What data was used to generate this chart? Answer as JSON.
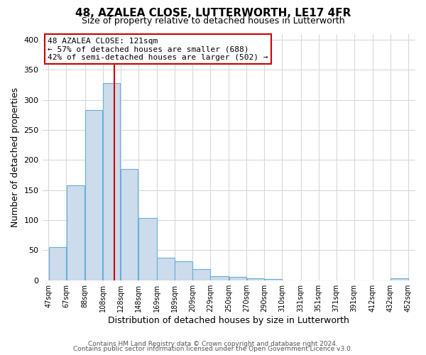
{
  "title1": "48, AZALEA CLOSE, LUTTERWORTH, LE17 4FR",
  "title2": "Size of property relative to detached houses in Lutterworth",
  "xlabel": "Distribution of detached houses by size in Lutterworth",
  "ylabel": "Number of detached properties",
  "footer1": "Contains HM Land Registry data © Crown copyright and database right 2024.",
  "footer2": "Contains public sector information licensed under the Open Government Licence v3.0.",
  "bar_left_edges": [
    47,
    67,
    88,
    108,
    128,
    148,
    169,
    189,
    209,
    229,
    250,
    270,
    290,
    310,
    331,
    351,
    371,
    391,
    412,
    432
  ],
  "bar_heights": [
    55,
    158,
    283,
    328,
    185,
    103,
    37,
    32,
    18,
    7,
    5,
    3,
    2,
    0,
    0,
    0,
    0,
    0,
    0,
    3
  ],
  "bar_widths": [
    20,
    21,
    20,
    20,
    20,
    21,
    20,
    20,
    20,
    21,
    20,
    20,
    20,
    21,
    20,
    20,
    20,
    21,
    20,
    20
  ],
  "bar_color": "#ccdcec",
  "bar_edge_color": "#6baed6",
  "vline_x": 121,
  "vline_color": "#cc0000",
  "annotation_title": "48 AZALEA CLOSE: 121sqm",
  "annotation_line1": "← 57% of detached houses are smaller (688)",
  "annotation_line2": "42% of semi-detached houses are larger (502) →",
  "annotation_box_color": "#ffffff",
  "annotation_box_edge": "#cc0000",
  "ylim": [
    0,
    410
  ],
  "xlim": [
    40,
    460
  ],
  "yticks": [
    0,
    50,
    100,
    150,
    200,
    250,
    300,
    350,
    400
  ],
  "xtick_labels": [
    "47sqm",
    "67sqm",
    "88sqm",
    "108sqm",
    "128sqm",
    "148sqm",
    "169sqm",
    "189sqm",
    "209sqm",
    "229sqm",
    "250sqm",
    "270sqm",
    "290sqm",
    "310sqm",
    "331sqm",
    "351sqm",
    "371sqm",
    "391sqm",
    "412sqm",
    "432sqm",
    "452sqm"
  ],
  "xtick_positions": [
    47,
    67,
    88,
    108,
    128,
    148,
    169,
    189,
    209,
    229,
    250,
    270,
    290,
    310,
    331,
    351,
    371,
    391,
    412,
    432,
    452
  ],
  "grid_color": "#d8d8d8",
  "bg_color": "#ffffff",
  "title1_fontsize": 11,
  "title2_fontsize": 9,
  "ylabel_fontsize": 9,
  "xlabel_fontsize": 9,
  "ytick_fontsize": 8,
  "xtick_fontsize": 7,
  "annotation_fontsize": 8,
  "footer_fontsize": 6.5
}
